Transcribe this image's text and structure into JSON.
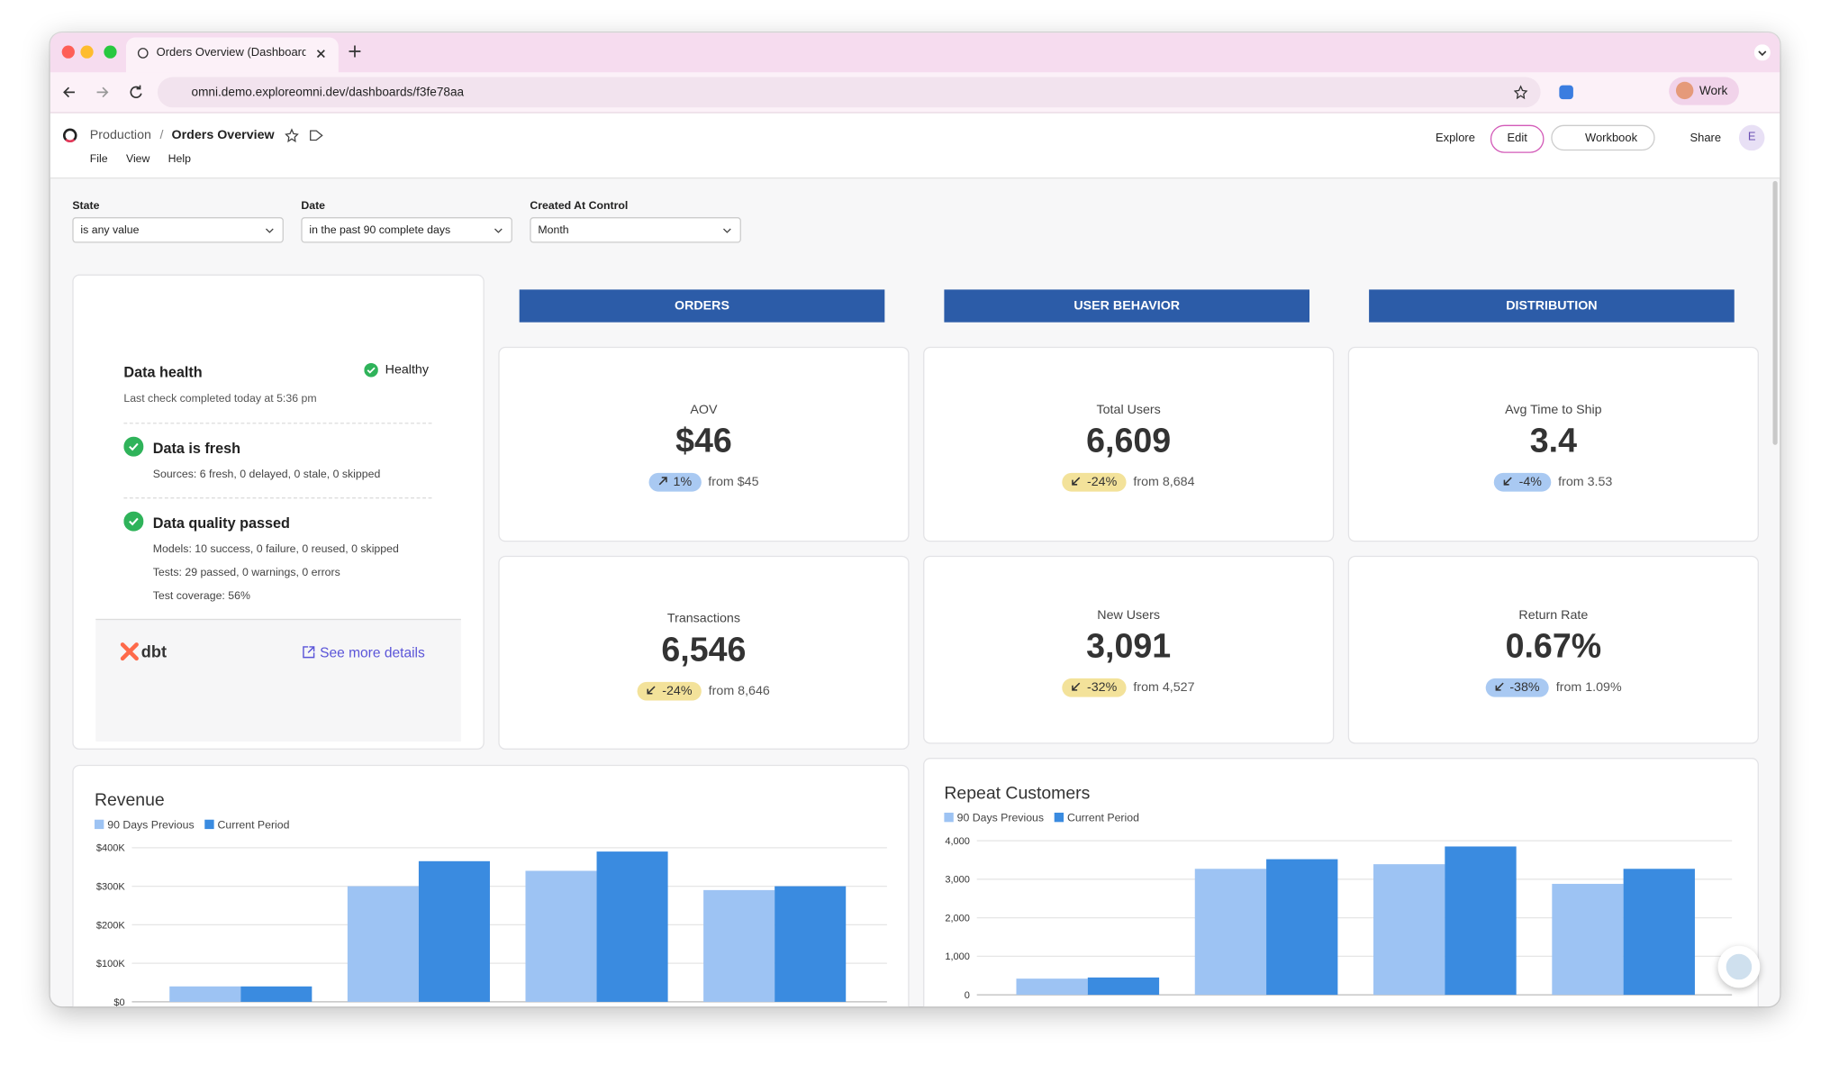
{
  "browser": {
    "tab_title": "Orders Overview (Dashboard",
    "url": "omni.demo.exploreomni.dev/dashboards/f3fe78aa",
    "profile": "Work"
  },
  "header": {
    "breadcrumb": "Production",
    "separator": "/",
    "title": "Orders Overview",
    "menu": [
      "File",
      "View",
      "Help"
    ],
    "actions": {
      "explore": "Explore",
      "edit": "Edit",
      "workbook": "Workbook",
      "share": "Share"
    },
    "avatar": "E"
  },
  "filters": [
    {
      "label": "State",
      "value": "is any value"
    },
    {
      "label": "Date",
      "value": "in the past 90 complete days"
    },
    {
      "label": "Created At Control",
      "value": "Month"
    }
  ],
  "health": {
    "title": "Data health",
    "status": "Healthy",
    "last_check": "Last check completed today at 5:36 pm",
    "checks": [
      {
        "title": "Data is fresh",
        "details": [
          "Sources: 6 fresh, 0 delayed, 0 stale, 0 skipped"
        ]
      },
      {
        "title": "Data quality passed",
        "details": [
          "Models: 10 success, 0 failure, 0 reused, 0 skipped",
          "Tests: 29 passed, 0 warnings, 0 errors",
          "Test coverage: 56%"
        ]
      }
    ],
    "brand": "dbt",
    "link": "See more details"
  },
  "sections": [
    "ORDERS",
    "USER BEHAVIOR",
    "DISTRIBUTION"
  ],
  "kpis": [
    {
      "label": "AOV",
      "value": "$46",
      "change": "1%",
      "direction": "up",
      "badge_color": "#a9c9f2",
      "from": "from $45"
    },
    {
      "label": "Total Users",
      "value": "6,609",
      "change": "-24%",
      "direction": "down",
      "badge_color": "#f3e29a",
      "from": "from 8,684"
    },
    {
      "label": "Avg Time to Ship",
      "value": "3.4",
      "change": "-4%",
      "direction": "down",
      "badge_color": "#a9c9f2",
      "from": "from 3.53"
    },
    {
      "label": "Transactions",
      "value": "6,546",
      "change": "-24%",
      "direction": "down",
      "badge_color": "#f3e29a",
      "from": "from 8,646"
    },
    {
      "label": "New Users",
      "value": "3,091",
      "change": "-32%",
      "direction": "down",
      "badge_color": "#f3e29a",
      "from": "from 4,527"
    },
    {
      "label": "Return Rate",
      "value": "0.67%",
      "change": "-38%",
      "direction": "down",
      "badge_color": "#a9c9f2",
      "from": "from 1.09%"
    }
  ],
  "charts": [
    {
      "type": "bar",
      "title": "Revenue",
      "categories": [
        null,
        null,
        null,
        null
      ],
      "series": [
        {
          "name": "90 Days Previous",
          "color": "#9dc3f3",
          "values": [
            40000,
            300000,
            340000,
            290000
          ]
        },
        {
          "name": "Current Period",
          "color": "#3a8be0",
          "values": [
            40000,
            365000,
            390000,
            300000
          ]
        }
      ],
      "ylim": [
        0,
        400000
      ],
      "yticks": [
        {
          "value": 0,
          "label": "$0"
        },
        {
          "value": 100000,
          "label": "$100K"
        },
        {
          "value": 200000,
          "label": "$200K"
        },
        {
          "value": 300000,
          "label": "$300K"
        },
        {
          "value": 400000,
          "label": "$400K"
        }
      ],
      "grid": true
    },
    {
      "type": "bar",
      "title": "Repeat Customers",
      "categories": [
        null,
        null,
        null,
        null
      ],
      "series": [
        {
          "name": "90 Days Previous",
          "color": "#9dc3f3",
          "values": [
            420,
            3270,
            3390,
            2880
          ]
        },
        {
          "name": "Current Period",
          "color": "#3a8be0",
          "values": [
            450,
            3520,
            3850,
            3270
          ]
        }
      ],
      "ylim": [
        0,
        4000
      ],
      "yticks": [
        0,
        {
          "value": 1000,
          "label": "1,000"
        },
        {
          "value": 2000,
          "label": "2,000"
        },
        {
          "value": 3000,
          "label": "3,000"
        },
        {
          "value": 4000,
          "label": "4,000"
        }
      ],
      "grid": true
    }
  ]
}
